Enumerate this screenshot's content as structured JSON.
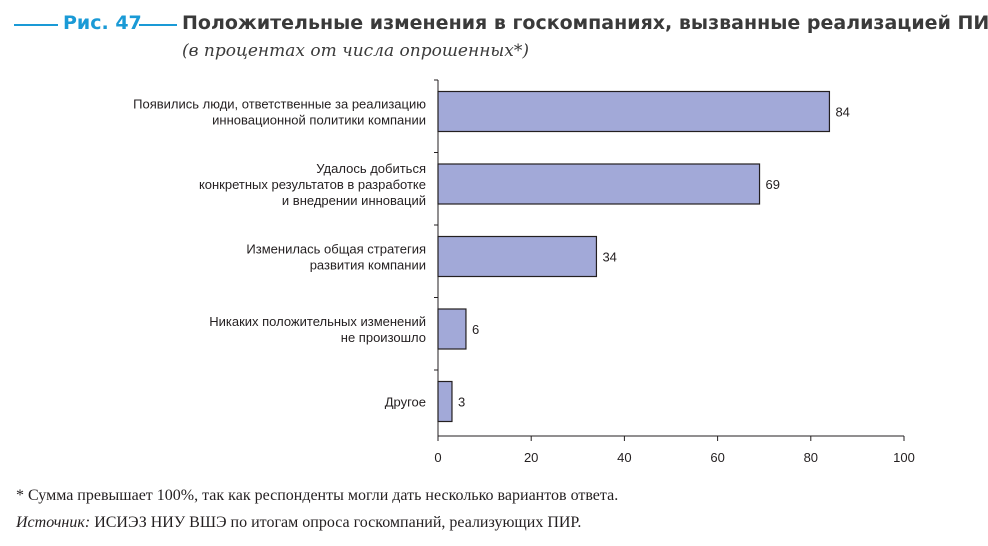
{
  "figure": {
    "label": "Рис. 47",
    "title": "Положительные изменения в госкомпаниях, вызванные реализацией ПИР",
    "subtitle": "(в процентах от числа опрошенных*)"
  },
  "colors": {
    "accent": "#1a9ad6",
    "bar_fill": "#a2a9d8",
    "bar_stroke": "#231f20",
    "text": "#231f20"
  },
  "chart_data": {
    "type": "bar",
    "orientation": "horizontal",
    "categories": [
      [
        "Появились люди, ответственные за реализацию",
        "инновационной политики компании"
      ],
      [
        "Удалось добиться",
        "конкретных результатов в  разработке",
        "и внедрении инноваций"
      ],
      [
        "Изменилась общая стратегия",
        "развития компании"
      ],
      [
        "Никаких положительных изменений",
        "не произошло"
      ],
      [
        "Другое"
      ]
    ],
    "values": [
      84,
      69,
      34,
      6,
      3
    ],
    "xlim": [
      0,
      100
    ],
    "xticks": [
      0,
      20,
      40,
      60,
      80,
      100
    ],
    "grid": false,
    "legend": "none"
  },
  "footnotes": {
    "asterisk": "*  Сумма превышает 100%, так как респонденты могли дать несколько вариантов ответа.",
    "source_label": "Источник:",
    "source_text": " ИСИЭЗ НИУ ВШЭ по итогам опроса госкомпаний, реализующих ПИР."
  }
}
